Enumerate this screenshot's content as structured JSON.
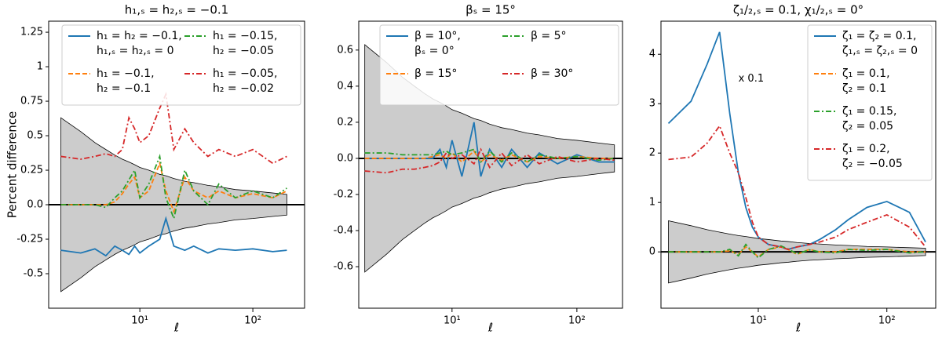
{
  "chart_data": [
    {
      "type": "line",
      "title": "h₁,ₛ = h₂,ₛ = −0.1",
      "xlabel": "ℓ",
      "ylabel": "Percent difference",
      "xscale": "log",
      "xlim": [
        1.56,
        287
      ],
      "ylim": [
        -0.75,
        1.33
      ],
      "xticks": [
        {
          "value": 10,
          "label": "10¹"
        },
        {
          "value": 100,
          "label": "10²"
        }
      ],
      "yticks": [
        -0.5,
        -0.25,
        {
          "value": 0,
          "label": "0.0"
        },
        0.25,
        0.5,
        0.75,
        1,
        1.25
      ],
      "legend": "upper right",
      "legend_columns": 2,
      "hline": 0,
      "x": [
        2,
        3,
        4,
        5,
        6,
        7,
        8,
        9,
        10,
        12,
        15,
        17,
        20,
        25,
        30,
        40,
        50,
        70,
        100,
        150,
        200
      ],
      "band": {
        "upper": [
          0.63,
          0.53,
          0.45,
          0.4,
          0.36,
          0.33,
          0.31,
          0.29,
          0.27,
          0.25,
          0.22,
          0.21,
          0.19,
          0.17,
          0.16,
          0.14,
          0.13,
          0.11,
          0.1,
          0.085,
          0.075
        ],
        "lower": [
          -0.63,
          -0.53,
          -0.45,
          -0.4,
          -0.36,
          -0.33,
          -0.31,
          -0.29,
          -0.27,
          -0.25,
          -0.22,
          -0.21,
          -0.19,
          -0.17,
          -0.16,
          -0.14,
          -0.13,
          -0.11,
          -0.1,
          -0.085,
          -0.075
        ]
      },
      "series": [
        {
          "name": [
            "h₁ = h₂ = −0.1,",
            "h₁,ₛ = h₂,ₛ = 0"
          ],
          "color": "#1f77b4",
          "linestyle": "solid",
          "values": [
            -0.33,
            -0.35,
            -0.32,
            -0.37,
            -0.3,
            -0.33,
            -0.36,
            -0.3,
            -0.35,
            -0.3,
            -0.25,
            -0.1,
            -0.3,
            -0.33,
            -0.3,
            -0.35,
            -0.32,
            -0.33,
            -0.32,
            -0.34,
            -0.33
          ]
        },
        {
          "name": [
            "h₁ = −0.1,",
            "h₂ = −0.1"
          ],
          "color": "#ff7f0e",
          "linestyle": "dashed",
          "values": [
            0,
            0,
            0,
            0,
            0.02,
            0.08,
            0.15,
            0.2,
            0.05,
            0.1,
            0.3,
            0.1,
            -0.05,
            0.2,
            0.1,
            0.05,
            0.1,
            0.05,
            0.08,
            0.05,
            0.1
          ]
        },
        {
          "name": [
            "h₁ = −0.15,",
            "h₂ = −0.05"
          ],
          "color": "#2ca02c",
          "linestyle": "dashdot",
          "values": [
            0,
            0,
            0,
            -0.02,
            0.05,
            0.1,
            0.18,
            0.25,
            0.05,
            0.15,
            0.35,
            0.05,
            -0.1,
            0.25,
            0.1,
            0,
            0.15,
            0.05,
            0.1,
            0.05,
            0.12
          ]
        },
        {
          "name": [
            "h₁ = −0.05,",
            "h₂ = −0.02"
          ],
          "color": "#d62728",
          "linestyle": "dashdot",
          "values": [
            0.35,
            0.33,
            0.35,
            0.37,
            0.35,
            0.4,
            0.63,
            0.55,
            0.45,
            0.5,
            0.7,
            0.8,
            0.4,
            0.55,
            0.45,
            0.35,
            0.4,
            0.35,
            0.4,
            0.3,
            0.35
          ]
        }
      ]
    },
    {
      "type": "line",
      "title": "βₛ = 15°",
      "xlabel": "ℓ",
      "xscale": "log",
      "xlim": [
        1.79,
        232
      ],
      "ylim": [
        -0.83,
        0.76
      ],
      "xticks": [
        {
          "value": 10,
          "label": "10¹"
        },
        {
          "value": 100,
          "label": "10²"
        }
      ],
      "yticks": [
        -0.6,
        -0.4,
        -0.2,
        {
          "value": 0,
          "label": "0.0"
        },
        0.2,
        0.4,
        0.6
      ],
      "legend": "upper right",
      "legend_columns": 2,
      "hline": 0,
      "x": [
        2,
        3,
        4,
        5,
        6,
        7,
        8,
        9,
        10,
        12,
        15,
        17,
        20,
        25,
        30,
        40,
        50,
        70,
        100,
        150,
        200
      ],
      "band": {
        "upper": [
          0.63,
          0.53,
          0.45,
          0.4,
          0.36,
          0.33,
          0.31,
          0.29,
          0.27,
          0.25,
          0.22,
          0.21,
          0.19,
          0.17,
          0.16,
          0.14,
          0.13,
          0.11,
          0.1,
          0.085,
          0.075
        ],
        "lower": [
          -0.63,
          -0.53,
          -0.45,
          -0.4,
          -0.36,
          -0.33,
          -0.31,
          -0.29,
          -0.27,
          -0.25,
          -0.22,
          -0.21,
          -0.19,
          -0.17,
          -0.16,
          -0.14,
          -0.13,
          -0.11,
          -0.1,
          -0.085,
          -0.075
        ]
      },
      "series": [
        {
          "name": [
            "β = 10°,",
            "βₛ = 0°"
          ],
          "color": "#1f77b4",
          "linestyle": "solid",
          "values": [
            0,
            0,
            0,
            0,
            0,
            0,
            0.05,
            -0.05,
            0.1,
            -0.1,
            0.2,
            -0.1,
            0.05,
            -0.05,
            0.05,
            -0.05,
            0.03,
            -0.03,
            0.02,
            -0.02,
            -0.02
          ]
        },
        {
          "name": [
            "β = 15°"
          ],
          "color": "#ff7f0e",
          "linestyle": "dashed",
          "values": [
            0,
            0,
            0,
            0,
            0,
            0.01,
            0.02,
            0,
            0.03,
            -0.02,
            0.04,
            -0.02,
            0.02,
            -0.01,
            0.02,
            -0.02,
            0.01,
            0,
            0.01,
            0,
            0
          ]
        },
        {
          "name": [
            "β = 5°"
          ],
          "color": "#2ca02c",
          "linestyle": "dashdot",
          "values": [
            0.03,
            0.03,
            0.02,
            0.02,
            0.02,
            0.02,
            0.03,
            0.04,
            0.02,
            0.03,
            0.05,
            -0.02,
            0.04,
            -0.02,
            0.03,
            -0.02,
            0.02,
            0,
            0.01,
            -0.01,
            0
          ]
        },
        {
          "name": [
            "β = 30°"
          ],
          "color": "#d62728",
          "linestyle": "dashdot",
          "values": [
            -0.07,
            -0.08,
            -0.06,
            -0.06,
            -0.05,
            -0.04,
            -0.02,
            0.03,
            0,
            0.02,
            -0.03,
            0.05,
            -0.05,
            0.03,
            -0.04,
            0.02,
            -0.03,
            0.01,
            -0.02,
            0,
            -0.01
          ]
        }
      ]
    },
    {
      "type": "line",
      "title": "ζ₁/₂,ₛ = 0.1, χ₁/₂,ₛ = 0°",
      "xlabel": "ℓ",
      "annotation": "x 0.1",
      "xscale": "log",
      "xlim": [
        1.75,
        240
      ],
      "ylim": [
        -1.14,
        4.67
      ],
      "xticks": [
        {
          "value": 10,
          "label": "10¹"
        },
        {
          "value": 100,
          "label": "10²"
        }
      ],
      "yticks": [
        0,
        1,
        2,
        3,
        4
      ],
      "legend": "upper right",
      "legend_columns": 1,
      "hline": 0,
      "x": [
        2,
        3,
        4,
        5,
        6,
        7,
        8,
        9,
        10,
        12,
        15,
        17,
        20,
        25,
        30,
        40,
        50,
        70,
        100,
        150,
        200
      ],
      "band": {
        "upper": [
          0.63,
          0.53,
          0.45,
          0.4,
          0.36,
          0.33,
          0.31,
          0.29,
          0.27,
          0.25,
          0.22,
          0.21,
          0.19,
          0.17,
          0.16,
          0.14,
          0.13,
          0.11,
          0.1,
          0.085,
          0.075
        ],
        "lower": [
          -0.63,
          -0.53,
          -0.45,
          -0.4,
          -0.36,
          -0.33,
          -0.31,
          -0.29,
          -0.27,
          -0.25,
          -0.22,
          -0.21,
          -0.19,
          -0.17,
          -0.16,
          -0.14,
          -0.13,
          -0.11,
          -0.1,
          -0.085,
          -0.075
        ]
      },
      "series": [
        {
          "name": [
            "ζ₁ = ζ₂ = 0.1,",
            "ζ₁,ₛ = ζ₂,ₛ = 0"
          ],
          "color": "#1f77b4",
          "linestyle": "solid",
          "values": [
            2.6,
            3.05,
            3.8,
            4.45,
            2.8,
            1.6,
            0.9,
            0.5,
            0.3,
            0.15,
            0.1,
            0.05,
            0.1,
            0.15,
            0.25,
            0.45,
            0.65,
            0.9,
            1.02,
            0.8,
            0.2
          ]
        },
        {
          "name": [
            "ζ₁ = 0.1,",
            "ζ₂ = 0.1"
          ],
          "color": "#ff7f0e",
          "linestyle": "dashed",
          "values": [
            0,
            0,
            0,
            0,
            0.02,
            -0.05,
            0.1,
            0,
            -0.1,
            0.05,
            0.1,
            0.05,
            -0.05,
            0.05,
            0,
            0,
            0.05,
            0.05,
            0.05,
            0,
            0
          ]
        },
        {
          "name": [
            "ζ₁ = 0.15,",
            "ζ₂ = 0.05"
          ],
          "color": "#2ca02c",
          "linestyle": "dashdot",
          "values": [
            0,
            0,
            0,
            0,
            0.05,
            -0.08,
            0.15,
            0,
            -0.12,
            0.05,
            0.12,
            0.06,
            -0.04,
            0.04,
            0,
            -0.02,
            0.05,
            0.03,
            0.05,
            -0.02,
            0
          ]
        },
        {
          "name": [
            "ζ₁ = 0.2,",
            "ζ₂ = −0.05"
          ],
          "color": "#d62728",
          "linestyle": "dashdot",
          "values": [
            1.87,
            1.92,
            2.2,
            2.55,
            2.0,
            1.6,
            1.1,
            0.6,
            0.3,
            0.15,
            0.1,
            0.05,
            0.1,
            0.15,
            0.2,
            0.3,
            0.45,
            0.6,
            0.75,
            0.5,
            0.1
          ]
        }
      ]
    }
  ]
}
